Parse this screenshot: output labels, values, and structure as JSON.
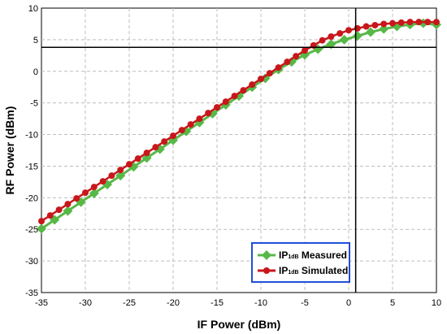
{
  "chart_data": {
    "type": "line",
    "xlabel": "IF Power (dBm)",
    "ylabel": "RF Power (dBm)",
    "xlim": [
      -35,
      10
    ],
    "ylim": [
      -35,
      10
    ],
    "xticks": [
      -35,
      -30,
      -25,
      -20,
      -15,
      -10,
      -5,
      0,
      5,
      10
    ],
    "yticks": [
      -35,
      -30,
      -25,
      -20,
      -15,
      -10,
      -5,
      0,
      5,
      10
    ],
    "grid": "dashed",
    "legend_position": "bottom-right",
    "series": [
      {
        "name": "Measured",
        "label_main": "IP",
        "label_sub": "1dB",
        "label_suffix": "Measured",
        "color": "#57b847",
        "marker": "diamond",
        "x": [
          -35,
          -33.5,
          -32,
          -30.5,
          -29,
          -27.5,
          -26,
          -24.5,
          -23,
          -21.5,
          -20,
          -18.5,
          -17,
          -15.5,
          -14,
          -12.5,
          -11,
          -9.5,
          -8,
          -6.5,
          -5,
          -3.5,
          -2,
          -0.5,
          1,
          2.5,
          4,
          5.5,
          7,
          8.5,
          10
        ],
        "y": [
          -24.9,
          -23.5,
          -22.1,
          -20.7,
          -19.3,
          -17.9,
          -16.5,
          -15.1,
          -13.7,
          -12.3,
          -10.9,
          -9.5,
          -8.1,
          -6.7,
          -5.3,
          -3.9,
          -2.5,
          -1.1,
          0.3,
          1.5,
          2.6,
          3.5,
          4.3,
          5.0,
          5.6,
          6.2,
          6.7,
          7.1,
          7.4,
          7.6,
          7.4
        ]
      },
      {
        "name": "Simulated",
        "label_main": "IP",
        "label_sub": "1dB",
        "label_suffix": "Simulated",
        "color": "#c8171b",
        "marker": "circle",
        "x": [
          -35,
          -34,
          -33,
          -32,
          -31,
          -30,
          -29,
          -28,
          -27,
          -26,
          -25,
          -24,
          -23,
          -22,
          -21,
          -20,
          -19,
          -18,
          -17,
          -16,
          -15,
          -14,
          -13,
          -12,
          -11,
          -10,
          -9,
          -8,
          -7,
          -6,
          -5,
          -4,
          -3,
          -2,
          -1,
          0,
          1,
          2,
          3,
          4,
          5,
          6,
          7,
          8,
          9,
          10
        ],
        "y": [
          -23.7,
          -22.8,
          -21.9,
          -21.0,
          -20.1,
          -19.2,
          -18.3,
          -17.4,
          -16.5,
          -15.6,
          -14.7,
          -13.8,
          -12.9,
          -12.0,
          -11.1,
          -10.2,
          -9.3,
          -8.4,
          -7.5,
          -6.6,
          -5.7,
          -4.8,
          -3.9,
          -3.0,
          -2.1,
          -1.2,
          -0.3,
          0.6,
          1.5,
          2.4,
          3.3,
          4.1,
          4.9,
          5.5,
          6.0,
          6.5,
          6.8,
          7.1,
          7.3,
          7.5,
          7.6,
          7.7,
          7.8,
          7.8,
          7.8,
          7.8
        ]
      }
    ],
    "reference_lines": {
      "vertical_x": 0.8,
      "horizontal_y": 3.8,
      "color": "#000000"
    }
  }
}
